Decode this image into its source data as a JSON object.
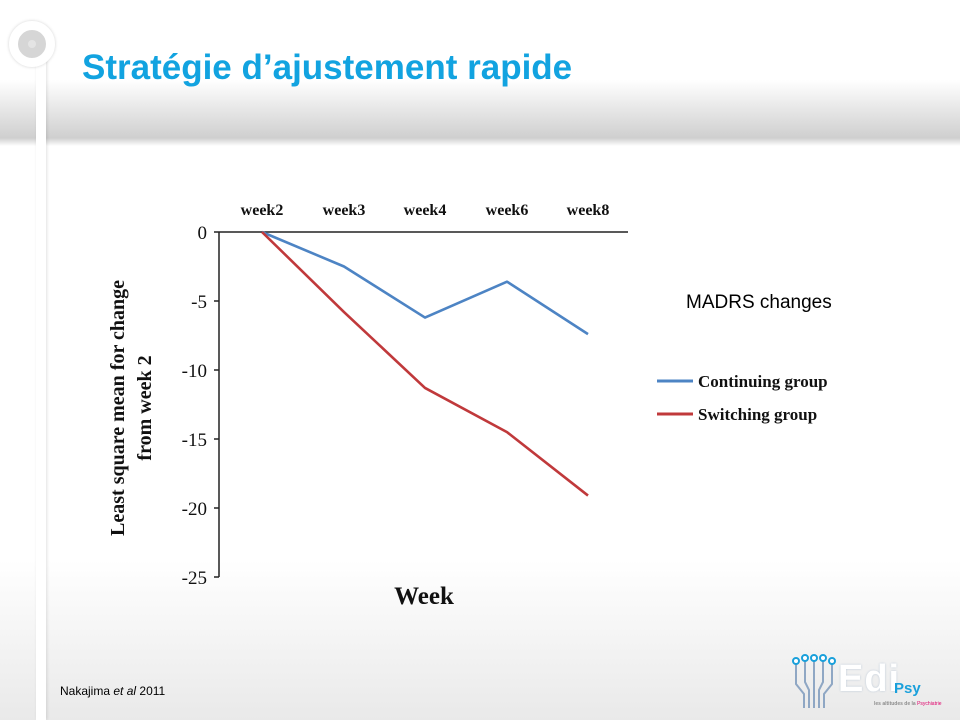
{
  "slide": {
    "title": "Stratégie d’ajustement rapide",
    "annotation": "MADRS changes",
    "citation": {
      "author": "Nakajima",
      "etal": "et al",
      "year": "2011"
    }
  },
  "logo": {
    "name": "Edi",
    "suffix": "Psy",
    "tagline_prefix": "les altitudes de la",
    "tagline_highlight": "Psychiatrie"
  },
  "colors": {
    "title": "#12a3e0",
    "continuing": "#4d84c4",
    "switching": "#c0393b"
  },
  "chart_data": {
    "type": "line",
    "categories": [
      "week2",
      "week3",
      "week4",
      "week6",
      "week8"
    ],
    "series": [
      {
        "name": "Continuing group",
        "values": [
          0,
          -2.5,
          -6.2,
          -3.6,
          -7.4
        ]
      },
      {
        "name": "Switching group",
        "values": [
          0,
          -5.8,
          -11.3,
          -14.5,
          -19.1
        ]
      }
    ],
    "xlabel": "Week",
    "ylabel": "Least square mean for change from week 2",
    "yticks": [
      "0",
      "-5",
      "-10",
      "-15",
      "-20",
      "-25"
    ],
    "ylim": [
      -25,
      0
    ],
    "grid": false,
    "legend": "right"
  }
}
